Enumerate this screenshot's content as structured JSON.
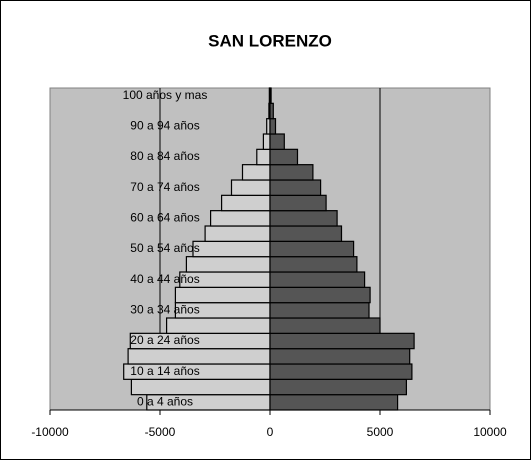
{
  "chart_data": {
    "type": "pyramid",
    "title": "SAN LORENZO",
    "categories": [
      "0 a 4 años",
      null,
      "10 a 14 años",
      null,
      "20 a 24 años",
      null,
      "30 a 34 años",
      null,
      "40 a 44 años",
      null,
      "50 a 54 años",
      null,
      "60 a 64 años",
      null,
      "70 a 74 años",
      null,
      "80 a 84 años",
      null,
      "90 a 94 años",
      null,
      "100 años y mas"
    ],
    "series": [
      {
        "color": "#cfcfcf",
        "values": [
          -5600,
          -6300,
          -6650,
          -6450,
          -6350,
          -4700,
          -4300,
          -4300,
          -4100,
          -3800,
          -3500,
          -2950,
          -2700,
          -2200,
          -1750,
          -1250,
          -600,
          -300,
          -150,
          -50,
          -30
        ]
      },
      {
        "color": "#555555",
        "values": [
          5800,
          6200,
          6450,
          6350,
          6550,
          5000,
          4500,
          4550,
          4300,
          3950,
          3800,
          3250,
          3050,
          2550,
          2300,
          1950,
          1250,
          650,
          250,
          150,
          50
        ]
      }
    ],
    "xlim": [
      -10000,
      10000
    ],
    "xticks": [
      -10000,
      -5000,
      0,
      5000,
      10000
    ],
    "grid": true,
    "plot_background": "#c0c0c0"
  }
}
